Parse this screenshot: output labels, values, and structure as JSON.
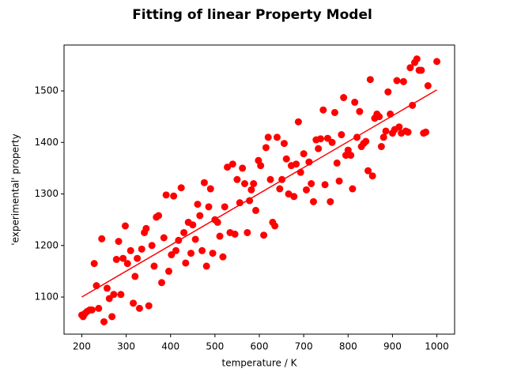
{
  "chart_data": {
    "type": "scatter",
    "title": "Fitting of linear Property Model",
    "xlabel": "temperature / K",
    "ylabel": "'experimental' property",
    "color": "#ff0000",
    "x": [
      200,
      203,
      207,
      212,
      218,
      223,
      228,
      233,
      238,
      245,
      250,
      257,
      262,
      268,
      272,
      278,
      283,
      288,
      293,
      298,
      303,
      310,
      316,
      320,
      325,
      330,
      335,
      341,
      345,
      351,
      358,
      363,
      368,
      373,
      380,
      385,
      390,
      396,
      402,
      407,
      412,
      418,
      424,
      430,
      434,
      440,
      446,
      450,
      456,
      461,
      466,
      471,
      476,
      481,
      486,
      490,
      495,
      500,
      506,
      511,
      518,
      522,
      528,
      534,
      540,
      545,
      550,
      556,
      562,
      567,
      573,
      578,
      582,
      587,
      592,
      598,
      603,
      610,
      615,
      620,
      625,
      630,
      635,
      640,
      646,
      651,
      656,
      661,
      666,
      672,
      678,
      683,
      688,
      693,
      700,
      706,
      712,
      717,
      722,
      728,
      733,
      738,
      744,
      748,
      754,
      760,
      764,
      770,
      775,
      780,
      785,
      790,
      795,
      800,
      806,
      810,
      815,
      820,
      826,
      830,
      835,
      840,
      845,
      850,
      855,
      860,
      865,
      870,
      875,
      880,
      885,
      890,
      895,
      900,
      905,
      910,
      915,
      920,
      925,
      930,
      935,
      940,
      945,
      950,
      955,
      960,
      965,
      970,
      975,
      980,
      1000
    ],
    "y": [
      1065,
      1062,
      1068,
      1072,
      1075,
      1075,
      1165,
      1122,
      1078,
      1213,
      1052,
      1117,
      1097,
      1062,
      1105,
      1173,
      1208,
      1105,
      1175,
      1238,
      1165,
      1190,
      1088,
      1140,
      1175,
      1078,
      1193,
      1225,
      1233,
      1083,
      1200,
      1160,
      1255,
      1258,
      1128,
      1215,
      1298,
      1150,
      1182,
      1296,
      1190,
      1210,
      1312,
      1225,
      1166,
      1245,
      1185,
      1240,
      1212,
      1280,
      1258,
      1190,
      1322,
      1160,
      1275,
      1310,
      1185,
      1250,
      1245,
      1218,
      1178,
      1275,
      1352,
      1225,
      1358,
      1222,
      1328,
      1283,
      1350,
      1320,
      1225,
      1287,
      1308,
      1320,
      1268,
      1365,
      1355,
      1220,
      1390,
      1410,
      1328,
      1245,
      1238,
      1410,
      1310,
      1328,
      1398,
      1368,
      1300,
      1355,
      1295,
      1358,
      1440,
      1342,
      1378,
      1308,
      1362,
      1320,
      1285,
      1405,
      1388,
      1407,
      1463,
      1318,
      1408,
      1285,
      1400,
      1458,
      1360,
      1325,
      1415,
      1487,
      1375,
      1385,
      1375,
      1310,
      1478,
      1410,
      1460,
      1392,
      1398,
      1402,
      1345,
      1522,
      1335,
      1447,
      1455,
      1450,
      1392,
      1410,
      1422,
      1498,
      1455,
      1418,
      1425,
      1520,
      1430,
      1418,
      1518,
      1422,
      1420,
      1545,
      1472,
      1555,
      1562,
      1540,
      1540,
      1418,
      1420,
      1510,
      1557
    ],
    "fit": {
      "color": "#ff0000",
      "x": [
        200,
        1000
      ],
      "y": [
        1100,
        1502
      ]
    },
    "xlim": [
      160,
      1040
    ],
    "ylim": [
      1028,
      1589
    ],
    "xticks": [
      200,
      300,
      400,
      500,
      600,
      700,
      800,
      900,
      1000
    ],
    "yticks": [
      1100,
      1200,
      1300,
      1400,
      1500
    ]
  }
}
